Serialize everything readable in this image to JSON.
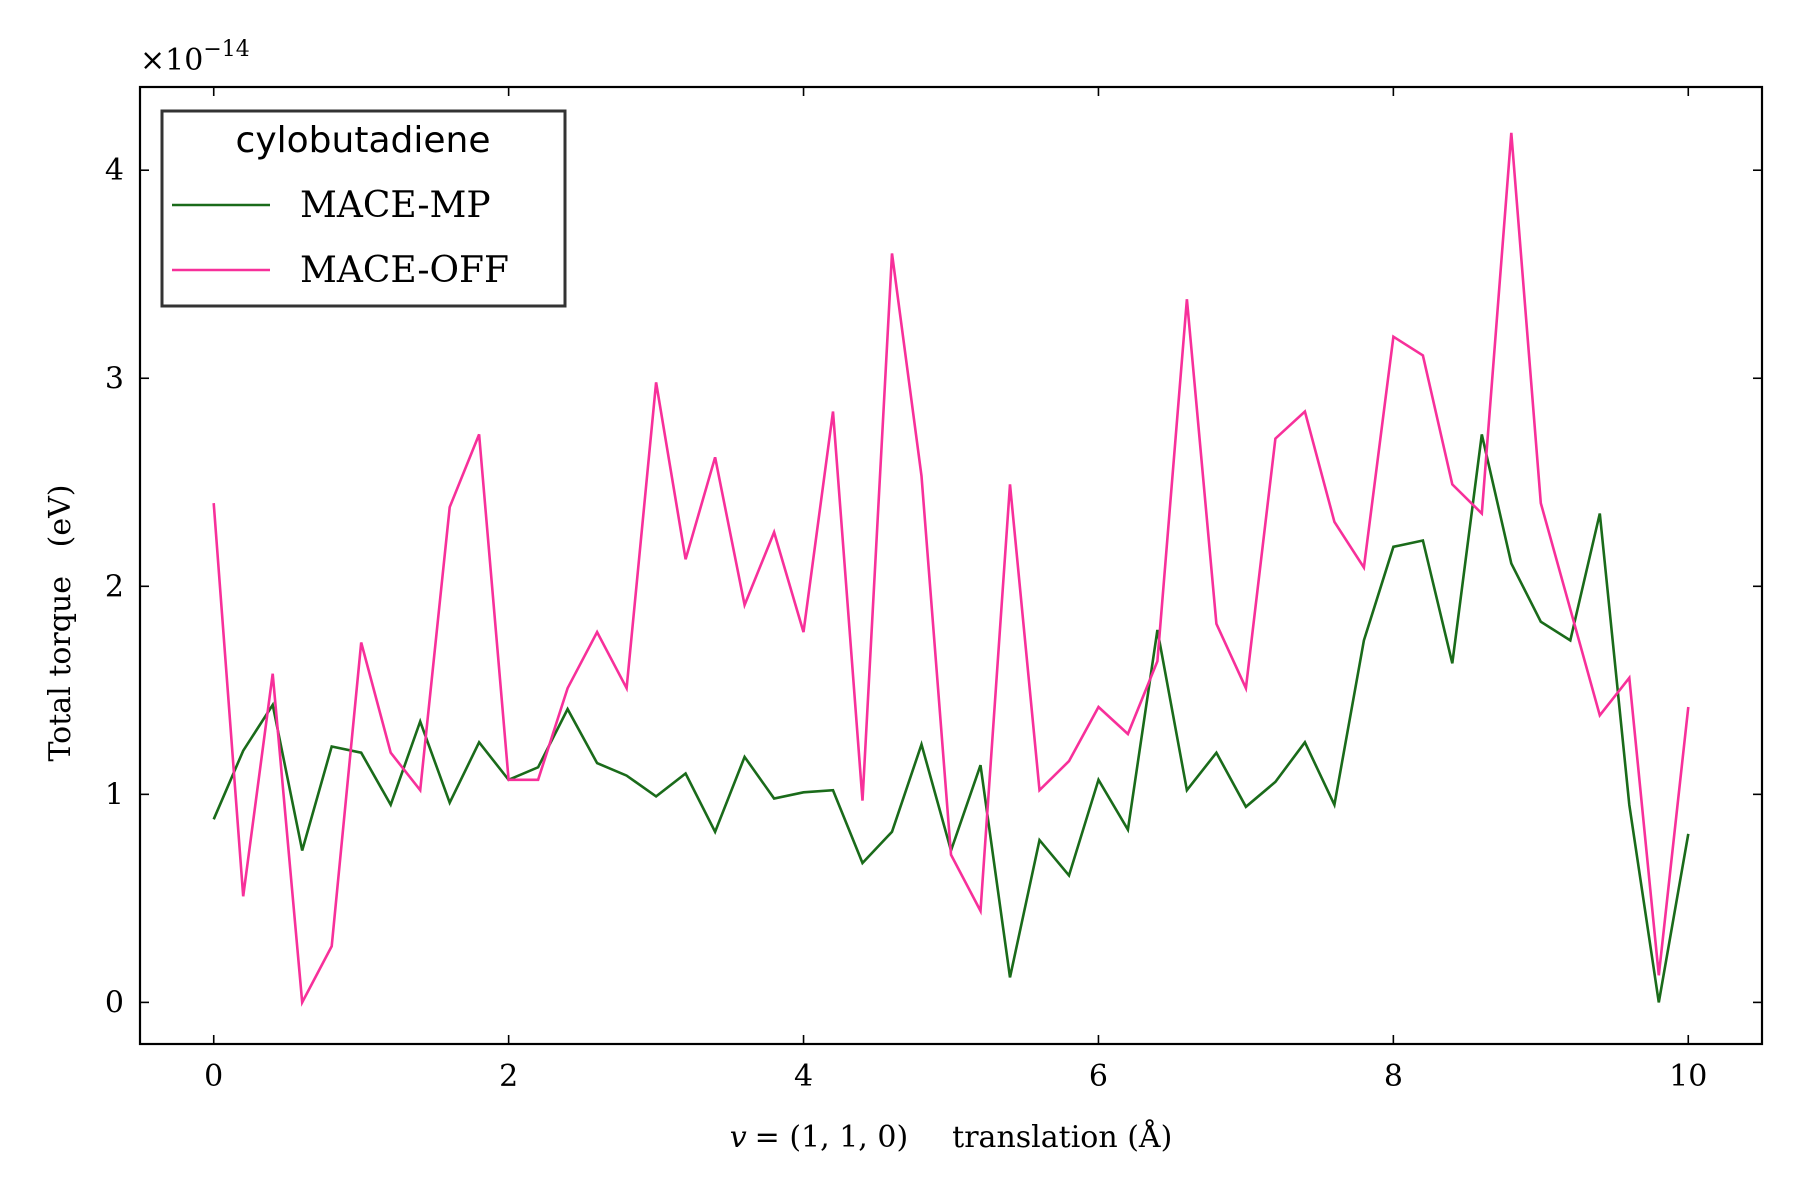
{
  "chart_data": {
    "type": "line",
    "legend": {
      "title": "cylobutadiene",
      "placement": "top-left"
    },
    "xlabel": {
      "lhs": "v",
      "rhs": "= (1, 1, 0)",
      "text": "translation (Å)"
    },
    "ylabel": "Total torque   (eV)",
    "y_multiplier": "×10",
    "y_multiplier_exp": "−14",
    "xlim": [
      -0.5,
      10.5
    ],
    "ylim": [
      -0.2,
      4.4
    ],
    "xticks": [
      0,
      2,
      4,
      6,
      8,
      10
    ],
    "xtick_labels": [
      "0",
      "2",
      "4",
      "6",
      "8",
      "10"
    ],
    "yticks": [
      0,
      1,
      2,
      3,
      4
    ],
    "ytick_labels": [
      "0",
      "1",
      "2",
      "3",
      "4"
    ],
    "grid": false,
    "x": [
      0,
      0.2,
      0.4,
      0.6,
      0.8,
      1.0,
      1.2,
      1.4,
      1.6,
      1.8,
      2.0,
      2.2,
      2.4,
      2.6,
      2.8,
      3.0,
      3.2,
      3.4,
      3.6,
      3.8,
      4.0,
      4.2,
      4.4,
      4.6,
      4.8,
      5.0,
      5.2,
      5.4,
      5.6,
      5.8,
      6.0,
      6.2,
      6.4,
      6.6,
      6.8,
      7.0,
      7.2,
      7.4,
      7.6,
      7.8,
      8.0,
      8.2,
      8.4,
      8.6,
      8.8,
      9.0,
      9.2,
      9.4,
      9.6,
      9.8,
      10.0
    ],
    "series": [
      {
        "name": "MACE-MP",
        "color": "#1a6b1a",
        "values": [
          0.88,
          1.21,
          1.43,
          0.73,
          1.23,
          1.2,
          0.95,
          1.35,
          0.96,
          1.25,
          1.07,
          1.13,
          1.41,
          1.15,
          1.09,
          0.99,
          1.1,
          0.82,
          1.18,
          0.98,
          1.01,
          1.02,
          0.67,
          0.82,
          1.24,
          0.73,
          1.14,
          0.12,
          0.78,
          0.61,
          1.07,
          0.83,
          1.79,
          1.02,
          1.2,
          0.94,
          1.06,
          1.25,
          0.95,
          1.74,
          2.19,
          2.22,
          1.63,
          2.73,
          2.11,
          1.83,
          1.74,
          2.35,
          0.95,
          0.0,
          0.81
        ]
      },
      {
        "name": "MACE-OFF",
        "color": "#f7309a",
        "values": [
          2.4,
          0.51,
          1.58,
          0.0,
          0.27,
          1.73,
          1.2,
          1.02,
          2.38,
          2.73,
          1.07,
          1.07,
          1.51,
          1.78,
          1.51,
          2.98,
          2.13,
          2.62,
          1.91,
          2.26,
          1.78,
          2.84,
          0.97,
          3.6,
          2.53,
          0.71,
          0.44,
          2.49,
          1.02,
          1.16,
          1.42,
          1.29,
          1.64,
          3.38,
          1.82,
          1.51,
          2.71,
          2.84,
          2.31,
          2.09,
          3.2,
          3.11,
          2.49,
          2.35,
          4.18,
          2.4,
          1.89,
          1.38,
          1.56,
          0.13,
          1.42
        ]
      }
    ]
  }
}
